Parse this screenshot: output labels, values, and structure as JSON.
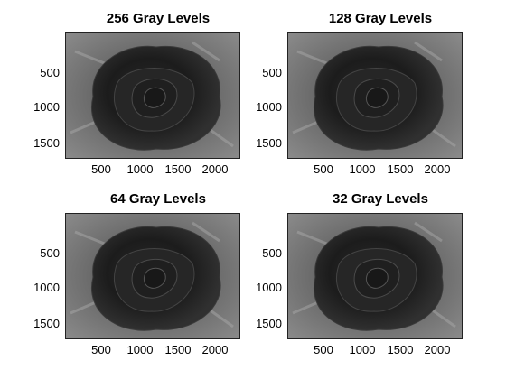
{
  "figure": {
    "panels": [
      {
        "title": "256 Gray Levels",
        "yticks": [
          "500",
          "1000",
          "1500"
        ],
        "xticks": [
          "500",
          "1000",
          "1500",
          "2000"
        ]
      },
      {
        "title": "128 Gray Levels",
        "yticks": [
          "500",
          "1000",
          "1500"
        ],
        "xticks": [
          "500",
          "1000",
          "1500",
          "2000"
        ]
      },
      {
        "title": "64 Gray Levels",
        "yticks": [
          "500",
          "1000",
          "1500"
        ],
        "xticks": [
          "500",
          "1000",
          "1500",
          "2000"
        ]
      },
      {
        "title": "32 Gray Levels",
        "yticks": [
          "500",
          "1000",
          "1500"
        ],
        "xticks": [
          "500",
          "1000",
          "1500",
          "2000"
        ]
      }
    ]
  }
}
